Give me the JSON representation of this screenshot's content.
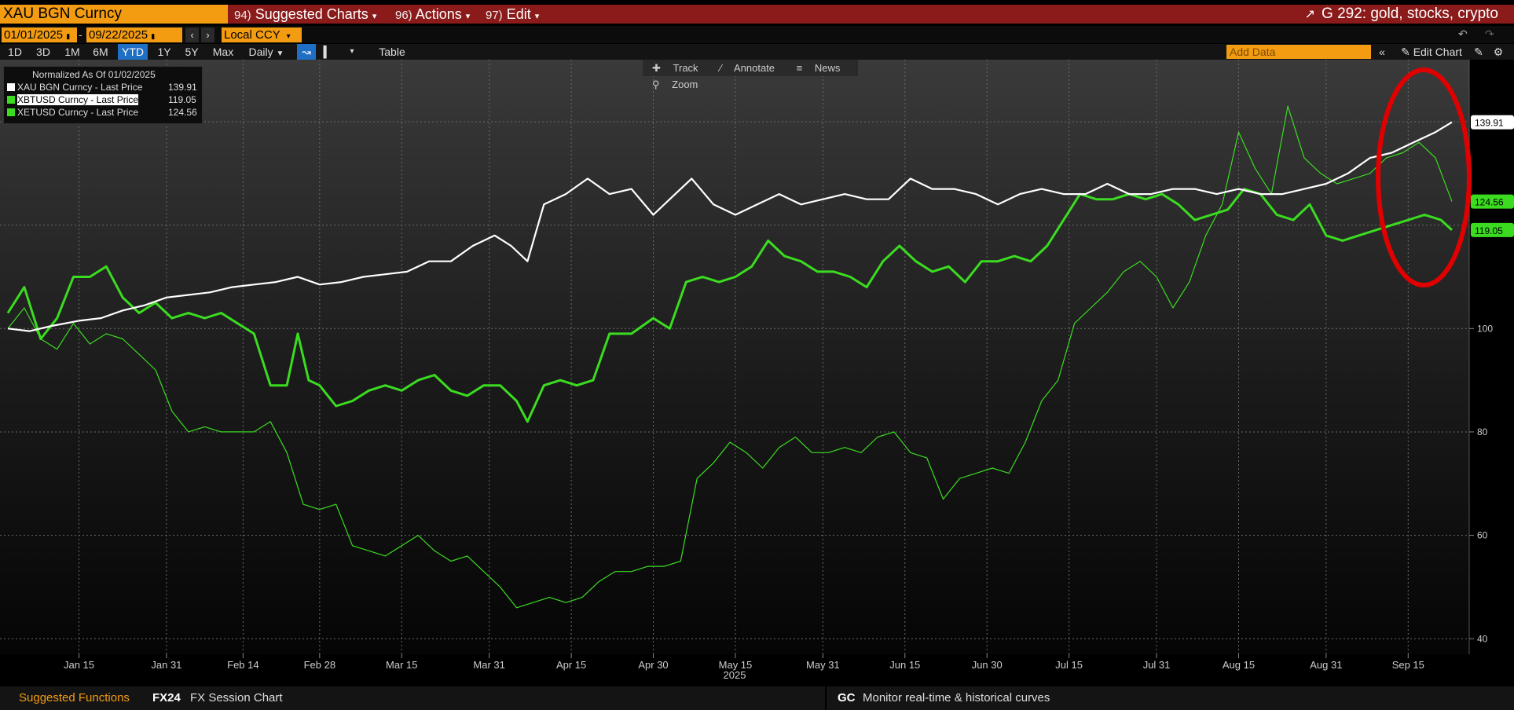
{
  "header": {
    "security": "XAU BGN Curncy",
    "menus": [
      {
        "num": "94)",
        "label": "Suggested Charts"
      },
      {
        "num": "96)",
        "label": "Actions"
      },
      {
        "num": "97)",
        "label": "Edit"
      }
    ],
    "chart_name": "G 292: gold, stocks, crypto"
  },
  "datebar": {
    "start": "01/01/2025",
    "end": "09/22/2025",
    "currency": "Local CCY"
  },
  "periods": [
    "1D",
    "3D",
    "1M",
    "6M",
    "YTD",
    "1Y",
    "5Y",
    "Max"
  ],
  "active_period": "YTD",
  "frequency": "Daily",
  "table_label": "Table",
  "add_data_placeholder": "Add Data",
  "edit_chart_label": "Edit Chart",
  "toolbar": {
    "track": "Track",
    "annotate": "Annotate",
    "news": "News",
    "zoom": "Zoom"
  },
  "legend": {
    "title": "Normalized As Of 01/02/2025",
    "items": [
      {
        "label": "XAU BGN Curncy - Last Price",
        "value": "139.91",
        "color": "#ffffff"
      },
      {
        "label": "XBTUSD Curncy - Last Price",
        "value": "119.05",
        "color": "#3bdc20"
      },
      {
        "label": "XETUSD Curncy - Last Price",
        "value": "124.56",
        "color": "#3bdc20"
      }
    ]
  },
  "bottom": {
    "suggested": "Suggested Functions",
    "fx24_code": "FX24",
    "fx24_label": "FX Session Chart",
    "gc_code": "GC",
    "gc_label": "Monitor real-time & historical curves"
  },
  "colors": {
    "gold": "#ffffff",
    "btc": "#3bdc20",
    "eth": "#3bdc20",
    "annotation": "#e00000",
    "accent": "#f39c12"
  },
  "chart_data": {
    "type": "line",
    "xlabel": "2025",
    "ylabel": "",
    "ylim": [
      37,
      152
    ],
    "yticks": [
      40,
      60,
      80,
      100
    ],
    "xtick_labels": [
      "Jan 15",
      "Jan 31",
      "Feb 14",
      "Feb 28",
      "Mar 15",
      "Mar 31",
      "Apr 15",
      "Apr 30",
      "May 15",
      "May 31",
      "Jun 15",
      "Jun 30",
      "Jul 15",
      "Jul 31",
      "Aug 15",
      "Aug 31",
      "Sep 15"
    ],
    "xtick_days": [
      14,
      30,
      44,
      58,
      73,
      89,
      104,
      119,
      134,
      150,
      165,
      180,
      195,
      211,
      226,
      242,
      257
    ],
    "x_range_days": [
      1,
      265
    ],
    "grid": true,
    "last_value_labels": [
      {
        "series": "XAU BGN Curncy",
        "value": "139.91"
      },
      {
        "series": "XETUSD Curncy",
        "value": "124.56"
      },
      {
        "series": "XBTUSD Curncy",
        "value": "119.05"
      }
    ],
    "series": [
      {
        "name": "XAU BGN Curncy",
        "color": "#ffffff",
        "width": 2.2,
        "points": [
          [
            1,
            100
          ],
          [
            5,
            99.5
          ],
          [
            9,
            100.5
          ],
          [
            14,
            101.5
          ],
          [
            18,
            102
          ],
          [
            22,
            103.5
          ],
          [
            26,
            104.5
          ],
          [
            30,
            106
          ],
          [
            34,
            106.5
          ],
          [
            38,
            107
          ],
          [
            42,
            108
          ],
          [
            46,
            108.5
          ],
          [
            50,
            109
          ],
          [
            54,
            110
          ],
          [
            58,
            108.5
          ],
          [
            62,
            109
          ],
          [
            66,
            110
          ],
          [
            70,
            110.5
          ],
          [
            74,
            111
          ],
          [
            78,
            113
          ],
          [
            82,
            113
          ],
          [
            86,
            116
          ],
          [
            90,
            118
          ],
          [
            93,
            116
          ],
          [
            96,
            113
          ],
          [
            99,
            124
          ],
          [
            103,
            126
          ],
          [
            107,
            129
          ],
          [
            111,
            126
          ],
          [
            115,
            127
          ],
          [
            119,
            122
          ],
          [
            123,
            126
          ],
          [
            126,
            129
          ],
          [
            130,
            124
          ],
          [
            134,
            122
          ],
          [
            138,
            124
          ],
          [
            142,
            126
          ],
          [
            146,
            124
          ],
          [
            150,
            125
          ],
          [
            154,
            126
          ],
          [
            158,
            125
          ],
          [
            162,
            125
          ],
          [
            166,
            129
          ],
          [
            170,
            127
          ],
          [
            174,
            127
          ],
          [
            178,
            126
          ],
          [
            182,
            124
          ],
          [
            186,
            126
          ],
          [
            190,
            127
          ],
          [
            194,
            126
          ],
          [
            198,
            126
          ],
          [
            202,
            128
          ],
          [
            206,
            126
          ],
          [
            210,
            126
          ],
          [
            214,
            127
          ],
          [
            218,
            127
          ],
          [
            222,
            126
          ],
          [
            226,
            127
          ],
          [
            230,
            126
          ],
          [
            234,
            126
          ],
          [
            238,
            127
          ],
          [
            242,
            128
          ],
          [
            246,
            130
          ],
          [
            250,
            133
          ],
          [
            254,
            134
          ],
          [
            258,
            136
          ],
          [
            262,
            138
          ],
          [
            265,
            139.91
          ]
        ]
      },
      {
        "name": "XBTUSD Curncy",
        "color": "#3bdc20",
        "width": 3,
        "points": [
          [
            1,
            103
          ],
          [
            4,
            108
          ],
          [
            7,
            98
          ],
          [
            10,
            102
          ],
          [
            13,
            110
          ],
          [
            16,
            110
          ],
          [
            19,
            112
          ],
          [
            22,
            106
          ],
          [
            25,
            103
          ],
          [
            28,
            105
          ],
          [
            31,
            102
          ],
          [
            34,
            103
          ],
          [
            37,
            102
          ],
          [
            40,
            103
          ],
          [
            43,
            101
          ],
          [
            46,
            99
          ],
          [
            49,
            89
          ],
          [
            52,
            89
          ],
          [
            54,
            99
          ],
          [
            56,
            90
          ],
          [
            58,
            89
          ],
          [
            61,
            85
          ],
          [
            64,
            86
          ],
          [
            67,
            88
          ],
          [
            70,
            89
          ],
          [
            73,
            88
          ],
          [
            76,
            90
          ],
          [
            79,
            91
          ],
          [
            82,
            88
          ],
          [
            85,
            87
          ],
          [
            88,
            89
          ],
          [
            91,
            89
          ],
          [
            94,
            86
          ],
          [
            96,
            82
          ],
          [
            99,
            89
          ],
          [
            102,
            90
          ],
          [
            105,
            89
          ],
          [
            108,
            90
          ],
          [
            111,
            99
          ],
          [
            115,
            99
          ],
          [
            119,
            102
          ],
          [
            122,
            100
          ],
          [
            125,
            109
          ],
          [
            128,
            110
          ],
          [
            131,
            109
          ],
          [
            134,
            110
          ],
          [
            137,
            112
          ],
          [
            140,
            117
          ],
          [
            143,
            114
          ],
          [
            146,
            113
          ],
          [
            149,
            111
          ],
          [
            152,
            111
          ],
          [
            155,
            110
          ],
          [
            158,
            108
          ],
          [
            161,
            113
          ],
          [
            164,
            116
          ],
          [
            167,
            113
          ],
          [
            170,
            111
          ],
          [
            173,
            112
          ],
          [
            176,
            109
          ],
          [
            179,
            113
          ],
          [
            182,
            113
          ],
          [
            185,
            114
          ],
          [
            188,
            113
          ],
          [
            191,
            116
          ],
          [
            194,
            121
          ],
          [
            197,
            126
          ],
          [
            200,
            125
          ],
          [
            203,
            125
          ],
          [
            206,
            126
          ],
          [
            209,
            125
          ],
          [
            212,
            126
          ],
          [
            215,
            124
          ],
          [
            218,
            121
          ],
          [
            221,
            122
          ],
          [
            224,
            123
          ],
          [
            227,
            127
          ],
          [
            230,
            126
          ],
          [
            233,
            122
          ],
          [
            236,
            121
          ],
          [
            239,
            124
          ],
          [
            242,
            118
          ],
          [
            245,
            117
          ],
          [
            248,
            118
          ],
          [
            251,
            119
          ],
          [
            254,
            120
          ],
          [
            257,
            121
          ],
          [
            260,
            122
          ],
          [
            263,
            121
          ],
          [
            265,
            119.05
          ]
        ]
      },
      {
        "name": "XETUSD Curncy",
        "color": "#3bdc20",
        "width": 1.2,
        "points": [
          [
            1,
            100
          ],
          [
            4,
            104
          ],
          [
            7,
            98
          ],
          [
            10,
            96
          ],
          [
            13,
            101
          ],
          [
            16,
            97
          ],
          [
            19,
            99
          ],
          [
            22,
            98
          ],
          [
            25,
            95
          ],
          [
            28,
            92
          ],
          [
            31,
            84
          ],
          [
            34,
            80
          ],
          [
            37,
            81
          ],
          [
            40,
            80
          ],
          [
            43,
            80
          ],
          [
            46,
            80
          ],
          [
            49,
            82
          ],
          [
            52,
            76
          ],
          [
            55,
            66
          ],
          [
            58,
            65
          ],
          [
            61,
            66
          ],
          [
            64,
            58
          ],
          [
            67,
            57
          ],
          [
            70,
            56
          ],
          [
            73,
            58
          ],
          [
            76,
            60
          ],
          [
            79,
            57
          ],
          [
            82,
            55
          ],
          [
            85,
            56
          ],
          [
            88,
            53
          ],
          [
            91,
            50
          ],
          [
            94,
            46
          ],
          [
            97,
            47
          ],
          [
            100,
            48
          ],
          [
            103,
            47
          ],
          [
            106,
            48
          ],
          [
            109,
            51
          ],
          [
            112,
            53
          ],
          [
            115,
            53
          ],
          [
            118,
            54
          ],
          [
            121,
            54
          ],
          [
            124,
            55
          ],
          [
            127,
            71
          ],
          [
            130,
            74
          ],
          [
            133,
            78
          ],
          [
            136,
            76
          ],
          [
            139,
            73
          ],
          [
            142,
            77
          ],
          [
            145,
            79
          ],
          [
            148,
            76
          ],
          [
            151,
            76
          ],
          [
            154,
            77
          ],
          [
            157,
            76
          ],
          [
            160,
            79
          ],
          [
            163,
            80
          ],
          [
            166,
            76
          ],
          [
            169,
            75
          ],
          [
            172,
            67
          ],
          [
            175,
            71
          ],
          [
            178,
            72
          ],
          [
            181,
            73
          ],
          [
            184,
            72
          ],
          [
            187,
            78
          ],
          [
            190,
            86
          ],
          [
            193,
            90
          ],
          [
            196,
            101
          ],
          [
            199,
            104
          ],
          [
            202,
            107
          ],
          [
            205,
            111
          ],
          [
            208,
            113
          ],
          [
            211,
            110
          ],
          [
            214,
            104
          ],
          [
            217,
            109
          ],
          [
            220,
            118
          ],
          [
            223,
            124
          ],
          [
            226,
            138
          ],
          [
            229,
            131
          ],
          [
            232,
            126
          ],
          [
            235,
            143
          ],
          [
            238,
            133
          ],
          [
            241,
            130
          ],
          [
            244,
            128
          ],
          [
            247,
            129
          ],
          [
            250,
            130
          ],
          [
            253,
            133
          ],
          [
            256,
            134
          ],
          [
            259,
            136
          ],
          [
            262,
            133
          ],
          [
            265,
            124.56
          ]
        ]
      }
    ]
  }
}
